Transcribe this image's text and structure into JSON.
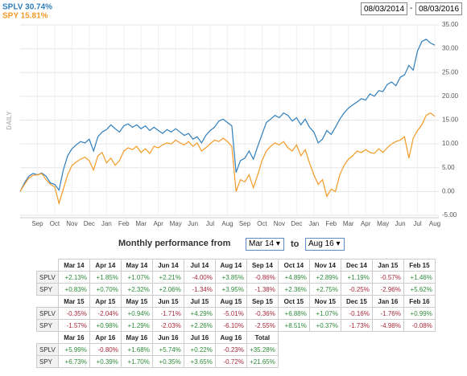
{
  "chart_data": {
    "type": "line",
    "y_label": "DAILY",
    "date_from": "08/03/2014",
    "date_separator": "-",
    "date_to": "08/03/2016",
    "categories": [
      null,
      null,
      null,
      null,
      "Sep",
      null,
      null,
      null,
      "Oct",
      null,
      null,
      null,
      "Nov",
      null,
      null,
      null,
      "Dec",
      null,
      null,
      null,
      "Jan",
      null,
      null,
      null,
      "Feb",
      null,
      null,
      null,
      "Mar",
      null,
      null,
      null,
      "Apr",
      null,
      null,
      null,
      "May",
      null,
      null,
      null,
      "Jun",
      null,
      null,
      null,
      "Jul",
      null,
      null,
      null,
      "Aug",
      null,
      null,
      null,
      "Sep",
      null,
      null,
      null,
      "Oct",
      null,
      null,
      null,
      "Nov",
      null,
      null,
      null,
      "Dec",
      null,
      null,
      null,
      "Jan",
      null,
      null,
      null,
      "Feb",
      null,
      null,
      null,
      "Mar",
      null,
      null,
      null,
      "Apr",
      null,
      null,
      null,
      "May",
      null,
      null,
      null,
      "Jun",
      null,
      null,
      null,
      "Jul",
      null,
      null,
      null,
      "Aug"
    ],
    "series": [
      {
        "name": "SPLV 30.74%",
        "color": "#2f7ebc",
        "values": [
          0,
          1.8,
          3.2,
          3.8,
          3.5,
          3.9,
          3.2,
          1.8,
          1.5,
          0.3,
          4.5,
          7.5,
          9.0,
          9.8,
          10.5,
          10.2,
          11.0,
          8.5,
          11.5,
          12.5,
          13.0,
          14.0,
          13.2,
          12.5,
          13.8,
          14.2,
          13.5,
          14.0,
          13.2,
          13.8,
          12.8,
          13.5,
          12.8,
          12.2,
          13.0,
          12.5,
          13.2,
          12.5,
          11.8,
          12.2,
          11.0,
          11.5,
          10.2,
          11.8,
          12.8,
          13.5,
          14.8,
          15.2,
          14.5,
          13.8,
          4.0,
          6.5,
          7.0,
          8.5,
          6.8,
          9.5,
          12.0,
          14.5,
          15.2,
          16.0,
          15.5,
          16.5,
          16.0,
          14.8,
          15.5,
          14.0,
          15.2,
          13.5,
          12.5,
          10.2,
          11.0,
          12.8,
          12.0,
          13.5,
          15.2,
          16.5,
          17.5,
          18.2,
          18.8,
          19.5,
          19.2,
          20.5,
          20.0,
          21.2,
          21.0,
          22.5,
          23.0,
          22.2,
          24.0,
          24.5,
          26.5,
          25.5,
          29.5,
          31.5,
          32.0,
          31.2,
          30.74
        ]
      },
      {
        "name": "SPY 15.81%",
        "color": "#f39a26",
        "values": [
          0,
          1.5,
          2.8,
          3.4,
          3.5,
          3.8,
          2.5,
          1.5,
          1.0,
          -2.5,
          0.5,
          3.5,
          5.5,
          6.2,
          6.8,
          7.2,
          6.5,
          4.5,
          7.5,
          8.2,
          6.0,
          7.0,
          5.5,
          6.5,
          8.5,
          9.2,
          8.8,
          9.5,
          8.2,
          9.0,
          8.0,
          9.5,
          9.2,
          9.8,
          10.2,
          10.0,
          10.8,
          10.2,
          9.8,
          10.5,
          9.5,
          10.2,
          8.5,
          9.2,
          10.0,
          10.8,
          10.5,
          11.2,
          10.5,
          9.5,
          0.0,
          2.5,
          2.0,
          3.5,
          0.8,
          3.5,
          6.5,
          8.5,
          9.5,
          10.2,
          9.8,
          10.5,
          9.2,
          8.5,
          9.8,
          7.5,
          8.8,
          6.0,
          3.5,
          1.5,
          2.5,
          -1.0,
          0.5,
          0.0,
          3.5,
          5.5,
          6.8,
          7.5,
          8.5,
          8.2,
          8.8,
          8.2,
          8.0,
          9.0,
          8.2,
          9.2,
          10.0,
          10.5,
          10.8,
          11.5,
          7.0,
          11.2,
          12.8,
          14.0,
          16.0,
          16.5,
          15.81
        ]
      }
    ],
    "ylim": [
      -5,
      35
    ],
    "yticks": [
      {
        "value": -5,
        "label": "-5.00"
      },
      {
        "value": 0,
        "label": "0.00"
      },
      {
        "value": 5,
        "label": "5.00"
      },
      {
        "value": 10,
        "label": "10.00"
      },
      {
        "value": 15,
        "label": "15.00"
      },
      {
        "value": 20,
        "label": "20.00"
      },
      {
        "value": 25,
        "label": "25.00"
      },
      {
        "value": 30,
        "label": "30.00"
      },
      {
        "value": 35,
        "label": "35.00"
      }
    ],
    "grid": true
  },
  "performance": {
    "title": "Monthly performance from",
    "from": "Mar 14",
    "connector": "to",
    "to": "Aug 16",
    "blocks": [
      {
        "months": [
          "Mar 14",
          "Apr 14",
          "May 14",
          "Jun 14",
          "Jul 14",
          "Aug 14",
          "Sep 14",
          "Oct 14",
          "Nov 14",
          "Dec 14",
          "Jan 15",
          "Feb 15"
        ],
        "rows": [
          {
            "label": "SPLV",
            "values": [
              "+2.13%",
              "+1.85%",
              "+1.07%",
              "+2.21%",
              "-4.00%",
              "+3.85%",
              "-0.86%",
              "+4.89%",
              "+2.89%",
              "+1.19%",
              "-0.57%",
              "+1.46%"
            ]
          },
          {
            "label": "SPY",
            "values": [
              "+0.83%",
              "+0.70%",
              "+2.32%",
              "+2.06%",
              "-1.34%",
              "+3.95%",
              "-1.38%",
              "+2.36%",
              "+2.75%",
              "-0.25%",
              "-2.96%",
              "+5.62%"
            ]
          }
        ]
      },
      {
        "months": [
          "Mar 15",
          "Apr 15",
          "May 15",
          "Jun 15",
          "Jul 15",
          "Aug 15",
          "Sep 15",
          "Oct 15",
          "Nov 15",
          "Dec 15",
          "Jan 16",
          "Feb 16"
        ],
        "rows": [
          {
            "label": "SPLV",
            "values": [
              "-0.35%",
              "-2.04%",
              "+0.94%",
              "-1.71%",
              "+4.29%",
              "-5.01%",
              "-0.36%",
              "+6.88%",
              "+1.07%",
              "-0.16%",
              "-1.76%",
              "+0.99%"
            ]
          },
          {
            "label": "SPY",
            "values": [
              "-1.57%",
              "+0.98%",
              "+1.29%",
              "-2.03%",
              "+2.26%",
              "-6.10%",
              "-2.55%",
              "+8.51%",
              "+0.37%",
              "-1.73%",
              "-4.98%",
              "-0.08%"
            ]
          }
        ]
      },
      {
        "months": [
          "Mar 16",
          "Apr 16",
          "May 16",
          "Jun 16",
          "Jul 16",
          "Aug 16",
          "Total"
        ],
        "rows": [
          {
            "label": "SPLV",
            "values": [
              "+5.99%",
              "-0.80%",
              "+1.68%",
              "+5.74%",
              "+0.22%",
              "-0.23%",
              "+35.28%"
            ]
          },
          {
            "label": "SPY",
            "values": [
              "+6.73%",
              "+0.39%",
              "+1.70%",
              "+0.35%",
              "+3.65%",
              "-0.72%",
              "+21.65%"
            ]
          }
        ]
      }
    ]
  }
}
